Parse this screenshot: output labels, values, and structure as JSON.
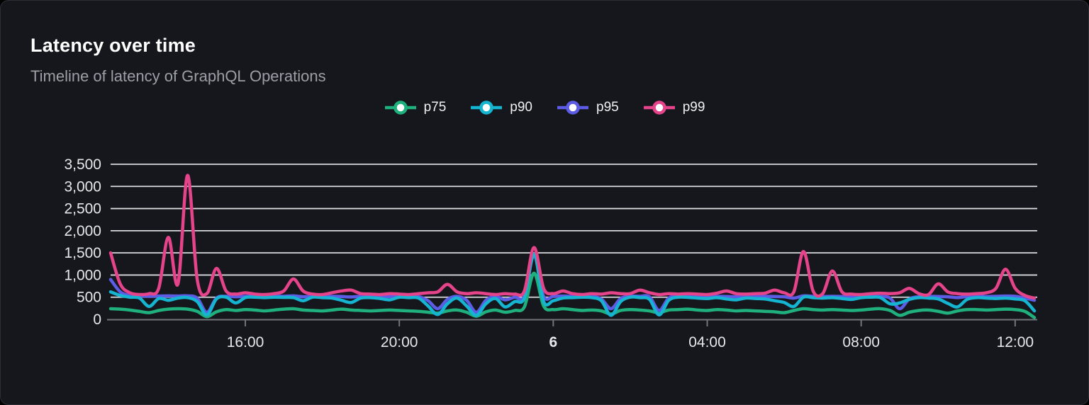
{
  "card": {
    "title": "Latency over time",
    "subtitle": "Timeline of latency of GraphQL Operations"
  },
  "chart_data": {
    "type": "line",
    "title": "Latency over time",
    "subtitle": "Timeline of latency of GraphQL Operations",
    "grid": "horizontal",
    "legend_position": "top-center",
    "ylim": [
      0,
      3500
    ],
    "y_ticks": [
      "0",
      "500",
      "1,000",
      "1,500",
      "2,000",
      "2,500",
      "3,000",
      "3,500"
    ],
    "x_ticks": [
      {
        "index": 14,
        "label": "16:00",
        "bold": false
      },
      {
        "index": 30,
        "label": "20:00",
        "bold": false
      },
      {
        "index": 46,
        "label": "6",
        "bold": true
      },
      {
        "index": 62,
        "label": "04:00",
        "bold": false
      },
      {
        "index": 78,
        "label": "08:00",
        "bold": false
      },
      {
        "index": 94,
        "label": "12:00",
        "bold": false
      }
    ],
    "x": [
      "12:30",
      "12:45",
      "13:00",
      "13:15",
      "13:30",
      "13:45",
      "14:00",
      "14:15",
      "14:30",
      "14:45",
      "15:00",
      "15:15",
      "15:30",
      "15:45",
      "16:00",
      "16:15",
      "16:30",
      "16:45",
      "17:00",
      "17:15",
      "17:30",
      "17:45",
      "18:00",
      "18:15",
      "18:30",
      "18:45",
      "19:00",
      "19:15",
      "19:30",
      "19:45",
      "20:00",
      "20:15",
      "20:30",
      "20:45",
      "21:00",
      "21:15",
      "21:30",
      "21:45",
      "22:00",
      "22:15",
      "22:30",
      "22:45",
      "23:00",
      "23:15",
      "23:30",
      "23:45",
      "00:00",
      "00:15",
      "00:30",
      "00:45",
      "01:00",
      "01:15",
      "01:30",
      "01:45",
      "02:00",
      "02:15",
      "02:30",
      "02:45",
      "03:00",
      "03:15",
      "03:30",
      "03:45",
      "04:00",
      "04:15",
      "04:30",
      "04:45",
      "05:00",
      "05:15",
      "05:30",
      "05:45",
      "06:00",
      "06:15",
      "06:30",
      "06:45",
      "07:00",
      "07:15",
      "07:30",
      "07:45",
      "08:00",
      "08:15",
      "08:30",
      "08:45",
      "09:00",
      "09:15",
      "09:30",
      "09:45",
      "10:00",
      "10:15",
      "10:30",
      "10:45",
      "11:00",
      "11:15",
      "11:30",
      "11:45",
      "12:00",
      "12:15",
      "12:30"
    ],
    "series": [
      {
        "name": "p75",
        "color": "#1fb07e",
        "values": [
          240,
          230,
          210,
          180,
          150,
          200,
          230,
          240,
          230,
          180,
          60,
          170,
          220,
          200,
          220,
          210,
          190,
          210,
          230,
          240,
          210,
          200,
          190,
          210,
          230,
          210,
          200,
          190,
          200,
          210,
          200,
          190,
          180,
          160,
          140,
          190,
          210,
          160,
          70,
          170,
          210,
          160,
          200,
          280,
          1040,
          300,
          220,
          240,
          220,
          200,
          210,
          190,
          120,
          200,
          220,
          210,
          190,
          150,
          210,
          220,
          230,
          210,
          200,
          220,
          210,
          190,
          200,
          190,
          180,
          170,
          150,
          200,
          240,
          220,
          210,
          220,
          210,
          200,
          210,
          230,
          240,
          200,
          90,
          160,
          200,
          210,
          180,
          140,
          190,
          220,
          220,
          210,
          220,
          230,
          220,
          180,
          40
        ]
      },
      {
        "name": "p90",
        "color": "#15b5d2",
        "values": [
          620,
          540,
          500,
          480,
          290,
          470,
          430,
          480,
          490,
          400,
          100,
          460,
          500,
          370,
          490,
          500,
          490,
          500,
          495,
          490,
          420,
          500,
          490,
          480,
          430,
          380,
          480,
          490,
          470,
          440,
          500,
          490,
          480,
          300,
          110,
          350,
          480,
          300,
          90,
          350,
          470,
          280,
          400,
          480,
          1470,
          400,
          420,
          480,
          490,
          500,
          490,
          420,
          90,
          400,
          500,
          490,
          450,
          100,
          430,
          500,
          495,
          480,
          470,
          490,
          460,
          440,
          480,
          470,
          460,
          420,
          380,
          290,
          500,
          490,
          480,
          490,
          470,
          450,
          490,
          500,
          490,
          350,
          370,
          450,
          490,
          480,
          460,
          360,
          280,
          450,
          490,
          480,
          470,
          480,
          460,
          420,
          190
        ]
      },
      {
        "name": "p95",
        "color": "#5c5ce4",
        "values": [
          900,
          620,
          540,
          530,
          520,
          525,
          530,
          525,
          530,
          480,
          160,
          480,
          520,
          510,
          520,
          525,
          520,
          525,
          520,
          530,
          510,
          520,
          525,
          520,
          515,
          505,
          520,
          525,
          520,
          515,
          520,
          520,
          515,
          420,
          240,
          450,
          520,
          430,
          160,
          430,
          520,
          440,
          500,
          520,
          1450,
          520,
          520,
          525,
          520,
          515,
          520,
          460,
          240,
          470,
          520,
          520,
          510,
          200,
          480,
          520,
          520,
          515,
          520,
          520,
          515,
          510,
          520,
          515,
          520,
          515,
          510,
          480,
          530,
          520,
          515,
          520,
          515,
          510,
          520,
          520,
          515,
          480,
          240,
          460,
          510,
          520,
          515,
          510,
          490,
          515,
          520,
          515,
          520,
          525,
          520,
          480,
          430
        ]
      },
      {
        "name": "p99",
        "color": "#e5438a",
        "values": [
          1500,
          800,
          600,
          560,
          580,
          700,
          1850,
          800,
          3250,
          900,
          580,
          1150,
          640,
          570,
          600,
          570,
          560,
          580,
          640,
          910,
          640,
          570,
          560,
          600,
          640,
          660,
          580,
          570,
          560,
          580,
          570,
          560,
          580,
          600,
          620,
          790,
          620,
          580,
          600,
          580,
          560,
          580,
          570,
          640,
          1620,
          700,
          580,
          640,
          580,
          560,
          580,
          570,
          600,
          580,
          580,
          660,
          600,
          560,
          580,
          570,
          580,
          570,
          560,
          590,
          640,
          580,
          570,
          580,
          590,
          660,
          600,
          620,
          1530,
          640,
          580,
          1090,
          620,
          570,
          560,
          580,
          590,
          580,
          600,
          700,
          580,
          560,
          800,
          620,
          580,
          570,
          580,
          600,
          700,
          1130,
          700,
          540,
          480
        ]
      }
    ],
    "draw_order": [
      "p75",
      "p95",
      "p90",
      "p99"
    ],
    "axis_colors": {
      "gridline": "#e4e5e8",
      "zero_axis": "#71747a",
      "tick_label": "#e6e7ea"
    }
  }
}
